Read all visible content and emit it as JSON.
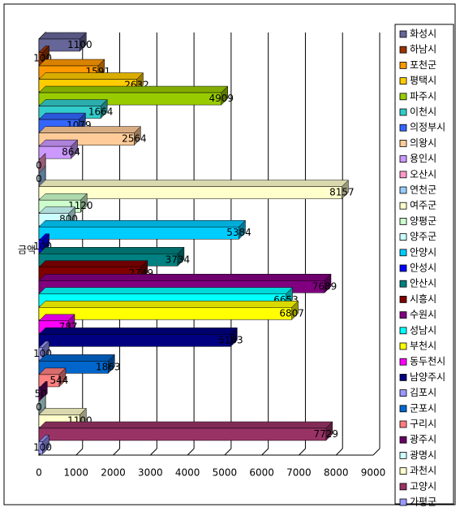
{
  "chart_data": {
    "type": "bar",
    "orientation": "horizontal",
    "y_axis_label": "금액",
    "series": [
      {
        "name": "화성시",
        "color": "#666699",
        "values": [
          1100
        ]
      },
      {
        "name": "하남시",
        "color": "#993300",
        "values": [
          100
        ]
      },
      {
        "name": "포천군",
        "color": "#FF9900",
        "values": [
          1591
        ]
      },
      {
        "name": "평택시",
        "color": "#FFCC00",
        "values": [
          2632
        ]
      },
      {
        "name": "파주시",
        "color": "#99CC00",
        "values": [
          4909
        ]
      },
      {
        "name": "이천시",
        "color": "#33CCCC",
        "values": [
          1664
        ]
      },
      {
        "name": "의정부시",
        "color": "#3366FF",
        "values": [
          1079
        ]
      },
      {
        "name": "의왕시",
        "color": "#FFCC99",
        "values": [
          2564
        ]
      },
      {
        "name": "용인시",
        "color": "#CC99FF",
        "values": [
          864
        ]
      },
      {
        "name": "오산시",
        "color": "#FF99CC",
        "values": [
          0
        ]
      },
      {
        "name": "연천군",
        "color": "#99CCFF",
        "values": [
          0
        ]
      },
      {
        "name": "여주군",
        "color": "#FFFFCC",
        "values": [
          8157
        ]
      },
      {
        "name": "양평군",
        "color": "#CCFFCC",
        "values": [
          1120
        ]
      },
      {
        "name": "양주군",
        "color": "#CCFFFF",
        "values": [
          800
        ]
      },
      {
        "name": "안양시",
        "color": "#00CCFF",
        "values": [
          5384
        ]
      },
      {
        "name": "안성시",
        "color": "#0000FF",
        "values": [
          100
        ]
      },
      {
        "name": "안산시",
        "color": "#008080",
        "values": [
          3734
        ]
      },
      {
        "name": "시흥시",
        "color": "#800000",
        "values": [
          2749
        ]
      },
      {
        "name": "수원시",
        "color": "#800080",
        "values": [
          7689
        ]
      },
      {
        "name": "성남시",
        "color": "#00FFFF",
        "values": [
          6653
        ]
      },
      {
        "name": "부천시",
        "color": "#FFFF00",
        "values": [
          6807
        ]
      },
      {
        "name": "동두천시",
        "color": "#FF00FF",
        "values": [
          787
        ]
      },
      {
        "name": "남양주시",
        "color": "#000080",
        "values": [
          5163
        ]
      },
      {
        "name": "김포시",
        "color": "#9999FF",
        "values": [
          100
        ]
      },
      {
        "name": "군포시",
        "color": "#0066CC",
        "values": [
          1863
        ]
      },
      {
        "name": "구리시",
        "color": "#FF8080",
        "values": [
          544
        ]
      },
      {
        "name": "광주시",
        "color": "#660066",
        "values": [
          50
        ]
      },
      {
        "name": "광명시",
        "color": "#CCFFFF",
        "values": [
          0
        ]
      },
      {
        "name": "과천시",
        "color": "#FFFFCC",
        "values": [
          1100
        ]
      },
      {
        "name": "고양시",
        "color": "#993366",
        "values": [
          7729
        ]
      },
      {
        "name": "가평군",
        "color": "#9999FF",
        "values": [
          100
        ]
      }
    ],
    "xlim": [
      0,
      9000
    ],
    "xticks": [
      0,
      1000,
      2000,
      3000,
      4000,
      5000,
      6000,
      7000,
      8000,
      9000
    ],
    "grid": true
  }
}
